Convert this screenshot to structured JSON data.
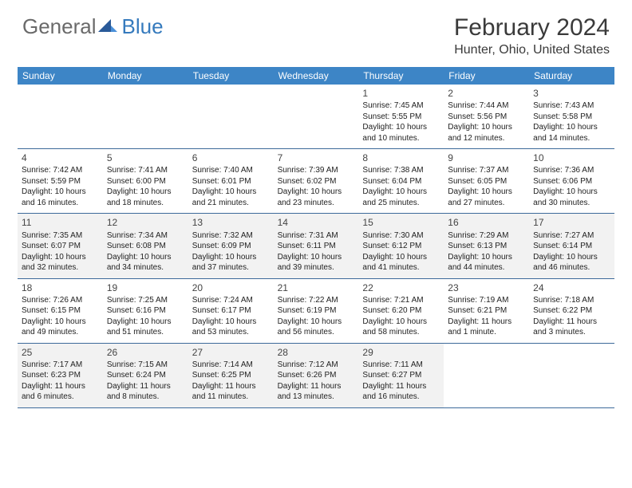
{
  "logo": {
    "text1": "General",
    "text2": "Blue"
  },
  "colors": {
    "header_bg": "#3d85c6",
    "header_text": "#ffffff",
    "divider": "#3d6a9a",
    "shaded_row": "#f2f2f2",
    "logo_grey": "#6a6a6a",
    "logo_blue": "#357abd",
    "text": "#222222"
  },
  "title": "February 2024",
  "location": "Hunter, Ohio, United States",
  "day_headers": [
    "Sunday",
    "Monday",
    "Tuesday",
    "Wednesday",
    "Thursday",
    "Friday",
    "Saturday"
  ],
  "weeks": [
    {
      "shaded": false,
      "cells": [
        {
          "empty": true
        },
        {
          "empty": true
        },
        {
          "empty": true
        },
        {
          "empty": true
        },
        {
          "num": "1",
          "sunrise": "Sunrise: 7:45 AM",
          "sunset": "Sunset: 5:55 PM",
          "day1": "Daylight: 10 hours",
          "day2": "and 10 minutes."
        },
        {
          "num": "2",
          "sunrise": "Sunrise: 7:44 AM",
          "sunset": "Sunset: 5:56 PM",
          "day1": "Daylight: 10 hours",
          "day2": "and 12 minutes."
        },
        {
          "num": "3",
          "sunrise": "Sunrise: 7:43 AM",
          "sunset": "Sunset: 5:58 PM",
          "day1": "Daylight: 10 hours",
          "day2": "and 14 minutes."
        }
      ]
    },
    {
      "shaded": false,
      "cells": [
        {
          "num": "4",
          "sunrise": "Sunrise: 7:42 AM",
          "sunset": "Sunset: 5:59 PM",
          "day1": "Daylight: 10 hours",
          "day2": "and 16 minutes."
        },
        {
          "num": "5",
          "sunrise": "Sunrise: 7:41 AM",
          "sunset": "Sunset: 6:00 PM",
          "day1": "Daylight: 10 hours",
          "day2": "and 18 minutes."
        },
        {
          "num": "6",
          "sunrise": "Sunrise: 7:40 AM",
          "sunset": "Sunset: 6:01 PM",
          "day1": "Daylight: 10 hours",
          "day2": "and 21 minutes."
        },
        {
          "num": "7",
          "sunrise": "Sunrise: 7:39 AM",
          "sunset": "Sunset: 6:02 PM",
          "day1": "Daylight: 10 hours",
          "day2": "and 23 minutes."
        },
        {
          "num": "8",
          "sunrise": "Sunrise: 7:38 AM",
          "sunset": "Sunset: 6:04 PM",
          "day1": "Daylight: 10 hours",
          "day2": "and 25 minutes."
        },
        {
          "num": "9",
          "sunrise": "Sunrise: 7:37 AM",
          "sunset": "Sunset: 6:05 PM",
          "day1": "Daylight: 10 hours",
          "day2": "and 27 minutes."
        },
        {
          "num": "10",
          "sunrise": "Sunrise: 7:36 AM",
          "sunset": "Sunset: 6:06 PM",
          "day1": "Daylight: 10 hours",
          "day2": "and 30 minutes."
        }
      ]
    },
    {
      "shaded": true,
      "cells": [
        {
          "num": "11",
          "sunrise": "Sunrise: 7:35 AM",
          "sunset": "Sunset: 6:07 PM",
          "day1": "Daylight: 10 hours",
          "day2": "and 32 minutes."
        },
        {
          "num": "12",
          "sunrise": "Sunrise: 7:34 AM",
          "sunset": "Sunset: 6:08 PM",
          "day1": "Daylight: 10 hours",
          "day2": "and 34 minutes."
        },
        {
          "num": "13",
          "sunrise": "Sunrise: 7:32 AM",
          "sunset": "Sunset: 6:09 PM",
          "day1": "Daylight: 10 hours",
          "day2": "and 37 minutes."
        },
        {
          "num": "14",
          "sunrise": "Sunrise: 7:31 AM",
          "sunset": "Sunset: 6:11 PM",
          "day1": "Daylight: 10 hours",
          "day2": "and 39 minutes."
        },
        {
          "num": "15",
          "sunrise": "Sunrise: 7:30 AM",
          "sunset": "Sunset: 6:12 PM",
          "day1": "Daylight: 10 hours",
          "day2": "and 41 minutes."
        },
        {
          "num": "16",
          "sunrise": "Sunrise: 7:29 AM",
          "sunset": "Sunset: 6:13 PM",
          "day1": "Daylight: 10 hours",
          "day2": "and 44 minutes."
        },
        {
          "num": "17",
          "sunrise": "Sunrise: 7:27 AM",
          "sunset": "Sunset: 6:14 PM",
          "day1": "Daylight: 10 hours",
          "day2": "and 46 minutes."
        }
      ]
    },
    {
      "shaded": false,
      "cells": [
        {
          "num": "18",
          "sunrise": "Sunrise: 7:26 AM",
          "sunset": "Sunset: 6:15 PM",
          "day1": "Daylight: 10 hours",
          "day2": "and 49 minutes."
        },
        {
          "num": "19",
          "sunrise": "Sunrise: 7:25 AM",
          "sunset": "Sunset: 6:16 PM",
          "day1": "Daylight: 10 hours",
          "day2": "and 51 minutes."
        },
        {
          "num": "20",
          "sunrise": "Sunrise: 7:24 AM",
          "sunset": "Sunset: 6:17 PM",
          "day1": "Daylight: 10 hours",
          "day2": "and 53 minutes."
        },
        {
          "num": "21",
          "sunrise": "Sunrise: 7:22 AM",
          "sunset": "Sunset: 6:19 PM",
          "day1": "Daylight: 10 hours",
          "day2": "and 56 minutes."
        },
        {
          "num": "22",
          "sunrise": "Sunrise: 7:21 AM",
          "sunset": "Sunset: 6:20 PM",
          "day1": "Daylight: 10 hours",
          "day2": "and 58 minutes."
        },
        {
          "num": "23",
          "sunrise": "Sunrise: 7:19 AM",
          "sunset": "Sunset: 6:21 PM",
          "day1": "Daylight: 11 hours",
          "day2": "and 1 minute."
        },
        {
          "num": "24",
          "sunrise": "Sunrise: 7:18 AM",
          "sunset": "Sunset: 6:22 PM",
          "day1": "Daylight: 11 hours",
          "day2": "and 3 minutes."
        }
      ]
    },
    {
      "shaded": true,
      "cells": [
        {
          "num": "25",
          "sunrise": "Sunrise: 7:17 AM",
          "sunset": "Sunset: 6:23 PM",
          "day1": "Daylight: 11 hours",
          "day2": "and 6 minutes."
        },
        {
          "num": "26",
          "sunrise": "Sunrise: 7:15 AM",
          "sunset": "Sunset: 6:24 PM",
          "day1": "Daylight: 11 hours",
          "day2": "and 8 minutes."
        },
        {
          "num": "27",
          "sunrise": "Sunrise: 7:14 AM",
          "sunset": "Sunset: 6:25 PM",
          "day1": "Daylight: 11 hours",
          "day2": "and 11 minutes."
        },
        {
          "num": "28",
          "sunrise": "Sunrise: 7:12 AM",
          "sunset": "Sunset: 6:26 PM",
          "day1": "Daylight: 11 hours",
          "day2": "and 13 minutes."
        },
        {
          "num": "29",
          "sunrise": "Sunrise: 7:11 AM",
          "sunset": "Sunset: 6:27 PM",
          "day1": "Daylight: 11 hours",
          "day2": "and 16 minutes."
        },
        {
          "empty": true
        },
        {
          "empty": true
        }
      ]
    }
  ]
}
